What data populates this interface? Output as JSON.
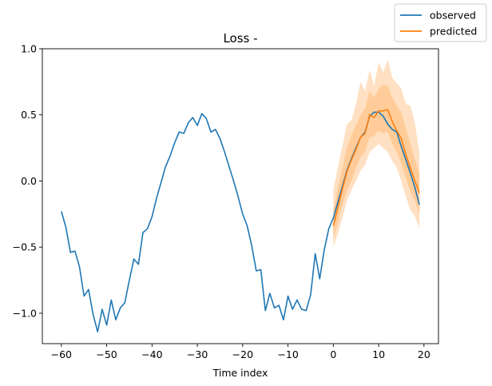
{
  "chart_data": {
    "type": "line",
    "title": "Loss -",
    "xlabel": "Time index",
    "ylabel": "",
    "xlim": [
      -64.2,
      23.2
    ],
    "ylim": [
      -1.23,
      1.0
    ],
    "xticks": [
      -60,
      -50,
      -40,
      -30,
      -20,
      -10,
      0,
      10,
      20
    ],
    "xtick_labels": [
      "−60",
      "−50",
      "−40",
      "−30",
      "−20",
      "−10",
      "0",
      "10",
      "20"
    ],
    "yticks": [
      -1.0,
      -0.5,
      0.0,
      0.5,
      1.0
    ],
    "ytick_labels": [
      "−1.0",
      "−0.5",
      "0.0",
      "0.5",
      "1.0"
    ],
    "grid": false,
    "legend": "top-right",
    "series": [
      {
        "name": "observed",
        "color": "#1f77b4",
        "x": [
          -60,
          -59,
          -58,
          -57,
          -56,
          -55,
          -54,
          -53,
          -52,
          -51,
          -50,
          -49,
          -48,
          -47,
          -46,
          -45,
          -44,
          -43,
          -42,
          -41,
          -40,
          -39,
          -38,
          -37,
          -36,
          -35,
          -34,
          -33,
          -32,
          -31,
          -30,
          -29,
          -28,
          -27,
          -26,
          -25,
          -24,
          -23,
          -22,
          -21,
          -20,
          -19,
          -18,
          -17,
          -16,
          -15,
          -14,
          -13,
          -12,
          -11,
          -10,
          -9,
          -8,
          -7,
          -6,
          -5,
          -4,
          -3,
          -2,
          -1,
          0,
          1,
          2,
          3,
          4,
          5,
          6,
          7,
          8,
          9,
          10,
          11,
          12,
          13,
          14,
          15,
          16,
          17,
          18,
          19
        ],
        "y": [
          -0.23,
          -0.35,
          -0.54,
          -0.53,
          -0.65,
          -0.87,
          -0.82,
          -1.01,
          -1.14,
          -0.97,
          -1.09,
          -0.9,
          -1.05,
          -0.96,
          -0.92,
          -0.75,
          -0.59,
          -0.63,
          -0.39,
          -0.36,
          -0.27,
          -0.13,
          -0.01,
          0.11,
          0.19,
          0.29,
          0.37,
          0.36,
          0.44,
          0.48,
          0.42,
          0.51,
          0.47,
          0.37,
          0.39,
          0.32,
          0.22,
          0.11,
          0.0,
          -0.12,
          -0.25,
          -0.34,
          -0.49,
          -0.68,
          -0.67,
          -0.98,
          -0.85,
          -0.96,
          -0.94,
          -1.05,
          -0.87,
          -0.97,
          -0.9,
          -0.97,
          -0.98,
          -0.86,
          -0.55,
          -0.74,
          -0.52,
          -0.36,
          -0.28,
          -0.16,
          -0.04,
          0.08,
          0.17,
          0.25,
          0.33,
          0.37,
          0.49,
          0.52,
          0.52,
          0.49,
          0.43,
          0.39,
          0.37,
          0.26,
          0.16,
          0.06,
          -0.05,
          -0.18
        ]
      },
      {
        "name": "predicted",
        "color": "#ff7f0e",
        "band_color": "#ffbb78",
        "x": [
          0,
          1,
          2,
          3,
          4,
          5,
          6,
          7,
          8,
          9,
          10,
          11,
          12,
          13,
          14,
          15,
          16,
          17,
          18,
          19
        ],
        "y": [
          -0.34,
          -0.2,
          -0.06,
          0.07,
          0.16,
          0.24,
          0.33,
          0.36,
          0.5,
          0.48,
          0.53,
          0.53,
          0.54,
          0.45,
          0.38,
          0.32,
          0.2,
          0.1,
          0.0,
          -0.09
        ],
        "lower": [
          -0.44,
          -0.32,
          -0.18,
          -0.07,
          0.0,
          0.1,
          0.18,
          0.22,
          0.33,
          0.34,
          0.38,
          0.36,
          0.37,
          0.28,
          0.22,
          0.13,
          0.02,
          -0.08,
          -0.15,
          -0.25
        ],
        "upper": [
          -0.22,
          -0.05,
          0.1,
          0.25,
          0.35,
          0.42,
          0.5,
          0.55,
          0.68,
          0.63,
          0.7,
          0.73,
          0.72,
          0.63,
          0.57,
          0.52,
          0.4,
          0.28,
          0.16,
          0.06
        ],
        "outer_lower": [
          -0.5,
          -0.4,
          -0.28,
          -0.15,
          -0.07,
          0.0,
          0.08,
          0.12,
          0.22,
          0.25,
          0.28,
          0.25,
          0.22,
          0.15,
          0.1,
          0.0,
          -0.12,
          -0.22,
          -0.27,
          -0.36
        ],
        "outer_upper": [
          -0.06,
          0.1,
          0.26,
          0.43,
          0.46,
          0.58,
          0.75,
          0.68,
          0.84,
          0.72,
          0.9,
          0.82,
          0.92,
          0.78,
          0.74,
          0.7,
          0.58,
          0.57,
          0.44,
          0.21
        ]
      }
    ]
  }
}
